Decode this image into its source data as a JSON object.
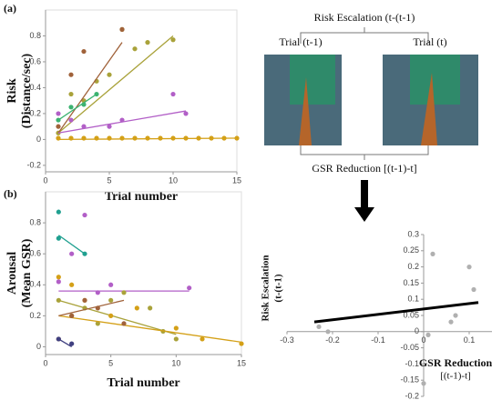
{
  "panel_labels": [
    "(a)",
    "(b)"
  ],
  "diagram": {
    "top_label": "Risk Escalation (t-(t-1)",
    "left_photo": "Trial (t-1)",
    "right_photo": "Trial (t)",
    "bottom_label": "GSR Reduction [(t-1)-t]"
  },
  "chart_data": [
    {
      "type": "scatter",
      "ylabel": [
        "Risk",
        "(Distance/sec)"
      ],
      "xlabel": "Trial number",
      "xlim": [
        0,
        15
      ],
      "xticks": [
        0,
        5,
        10,
        15
      ],
      "ylim": [
        -0.25,
        1.0
      ],
      "yticks": [
        -0.2,
        0,
        0.2,
        0.4,
        0.6,
        0.8
      ],
      "series": [
        {
          "color": "#a9a23a",
          "x": [
            1,
            2,
            3,
            4,
            5,
            6,
            7,
            8,
            10
          ],
          "values": [
            0.05,
            0.35,
            0.3,
            0.45,
            0.5,
            0.85,
            0.7,
            0.75,
            0.77
          ],
          "trend": {
            "x": [
              1,
              10
            ],
            "y": [
              0.05,
              0.8
            ]
          }
        },
        {
          "color": "#a0623a",
          "x": [
            1,
            2,
            3,
            6
          ],
          "values": [
            0.1,
            0.5,
            0.68,
            0.85
          ],
          "trend": {
            "x": [
              1,
              6
            ],
            "y": [
              0.05,
              0.75
            ]
          }
        },
        {
          "color": "#b25fc7",
          "x": [
            1,
            2,
            3,
            5,
            6,
            10,
            11
          ],
          "values": [
            0.2,
            0.15,
            0.1,
            0.1,
            0.15,
            0.35,
            0.2
          ],
          "trend": {
            "x": [
              1,
              11
            ],
            "y": [
              0.05,
              0.22
            ]
          }
        },
        {
          "color": "#3cb371",
          "x": [
            1,
            2,
            3,
            4
          ],
          "values": [
            0.15,
            0.25,
            0.27,
            0.35
          ],
          "trend": {
            "x": [
              1,
              4
            ],
            "y": [
              0.15,
              0.35
            ]
          }
        },
        {
          "color": "#d4a017",
          "x": [
            1,
            2,
            3,
            4,
            5,
            6,
            7,
            8,
            9,
            10,
            11,
            12,
            13,
            14,
            15
          ],
          "values": [
            0.01,
            0.01,
            0.01,
            0.01,
            0.01,
            0.01,
            0.01,
            0.01,
            0.01,
            0.01,
            0.01,
            0.01,
            0.01,
            0.01,
            0.01
          ],
          "trend": {
            "x": [
              1,
              15
            ],
            "y": [
              0,
              0.01
            ]
          }
        }
      ]
    },
    {
      "type": "scatter",
      "ylabel": [
        "Arousal",
        "(Mean GSR)"
      ],
      "xlabel": "Trial number",
      "xlim": [
        0,
        15
      ],
      "xticks": [
        0,
        5,
        10,
        15
      ],
      "ylim": [
        -0.05,
        1.0
      ],
      "yticks": [
        0,
        0.2,
        0.4,
        0.6,
        0.8
      ],
      "series": [
        {
          "color": "#20a090",
          "x": [
            1,
            1,
            3
          ],
          "values": [
            0.87,
            0.7,
            0.6
          ],
          "trend": {
            "x": [
              1,
              3
            ],
            "y": [
              0.72,
              0.6
            ]
          }
        },
        {
          "color": "#b25fc7",
          "x": [
            1,
            2,
            3,
            4,
            5,
            11
          ],
          "values": [
            0.42,
            0.6,
            0.85,
            0.35,
            0.4,
            0.38
          ],
          "trend": {
            "x": [
              1,
              11
            ],
            "y": [
              0.36,
              0.36
            ]
          }
        },
        {
          "color": "#a9a23a",
          "x": [
            1,
            2,
            3,
            4,
            5,
            6,
            8,
            9,
            10
          ],
          "values": [
            0.3,
            0.2,
            0.25,
            0.15,
            0.3,
            0.35,
            0.25,
            0.1,
            0.05
          ],
          "trend": {
            "x": [
              1,
              10
            ],
            "y": [
              0.3,
              0.08
            ]
          }
        },
        {
          "color": "#d4a017",
          "x": [
            1,
            2,
            3,
            5,
            7,
            10,
            12,
            15
          ],
          "values": [
            0.45,
            0.4,
            0.3,
            0.2,
            0.25,
            0.12,
            0.05,
            0.02
          ],
          "trend": {
            "x": [
              1,
              15
            ],
            "y": [
              0.2,
              0.03
            ]
          }
        },
        {
          "color": "#a0623a",
          "x": [
            1,
            2,
            3,
            4,
            6
          ],
          "values": [
            0.05,
            0.2,
            0.3,
            0.25,
            0.15
          ],
          "trend": {
            "x": [
              1,
              6
            ],
            "y": [
              0.2,
              0.3
            ]
          }
        },
        {
          "color": "#404080",
          "x": [
            1,
            2
          ],
          "values": [
            0.05,
            0.02
          ],
          "trend": {
            "x": [
              1,
              2
            ],
            "y": [
              0.05,
              0
            ]
          }
        }
      ]
    },
    {
      "type": "scatter",
      "axes_cross_zero": true,
      "ylabel": [
        "Risk Escalation",
        "(t-(t-1)"
      ],
      "xlabel": [
        "GSR Reduction",
        "[(t-1)-t]"
      ],
      "xlim": [
        -0.3,
        0.15
      ],
      "xticks": [
        -0.3,
        -0.2,
        -0.1,
        0,
        0.1
      ],
      "ylim": [
        -0.2,
        0.3
      ],
      "yticks": [
        -0.2,
        -0.15,
        -0.1,
        -0.05,
        0,
        0.05,
        0.1,
        0.15,
        0.2,
        0.25,
        0.3
      ],
      "series": [
        {
          "color": "#b0b0b0",
          "x": [
            -0.23,
            -0.21,
            0.02,
            0.1,
            0.11,
            0.07,
            0.06,
            0.01,
            0
          ],
          "values": [
            0.015,
            0,
            0.24,
            0.2,
            0.13,
            0.05,
            0.03,
            -0.01,
            -0.16
          ],
          "trend": {
            "x": [
              -0.24,
              0.12
            ],
            "y": [
              0.03,
              0.09
            ]
          }
        }
      ]
    }
  ]
}
